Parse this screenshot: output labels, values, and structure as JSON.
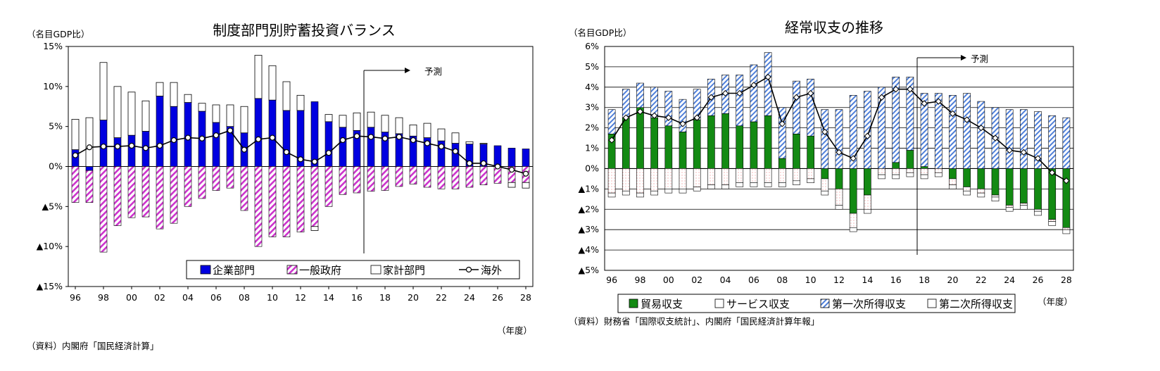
{
  "chart_data": [
    {
      "type": "bar",
      "title": "制度部門別貯蓄投資バランス",
      "ylabel": "（名目GDP比）",
      "xlabel": "（年度）",
      "source": "（資料）内閣府「国民経済計算」",
      "forecast_label": "予測",
      "forecast_from": 17,
      "ylim": [
        -15,
        15
      ],
      "yticks": [
        15,
        10,
        5,
        0,
        -5,
        -10,
        -15
      ],
      "ytick_labels": [
        "15%",
        "10%",
        "5%",
        "0%",
        "▲5%",
        "▲10%",
        "▲15%"
      ],
      "x": [
        96,
        97,
        98,
        99,
        0,
        1,
        2,
        3,
        4,
        5,
        6,
        7,
        8,
        9,
        10,
        11,
        12,
        13,
        14,
        15,
        16,
        17,
        18,
        19,
        20,
        21,
        22,
        23,
        24,
        25,
        26,
        27,
        28
      ],
      "xtick_labels": [
        "96",
        "98",
        "00",
        "02",
        "04",
        "06",
        "08",
        "10",
        "12",
        "14",
        "16",
        "18",
        "20",
        "22",
        "24",
        "26",
        "28"
      ],
      "legend_position": "bottom-right",
      "series": [
        {
          "name": "企業部門",
          "kind": "bar-stack-pos",
          "color": "#0000e0",
          "values": [
            2.1,
            -0.5,
            5.8,
            3.6,
            3.9,
            4.4,
            8.8,
            7.5,
            8.0,
            6.9,
            5.5,
            5.0,
            4.2,
            8.5,
            8.3,
            7.0,
            7.0,
            8.1,
            5.6,
            4.9,
            4.5,
            4.9,
            4.3,
            4.1,
            3.8,
            3.6,
            3.2,
            2.9,
            2.8,
            2.8,
            2.6,
            2.3,
            2.2
          ]
        },
        {
          "name": "家計部門",
          "kind": "bar-stack-pos",
          "color": "#ffffff",
          "values": [
            3.8,
            6.1,
            7.2,
            6.4,
            5.4,
            3.8,
            1.7,
            3.0,
            1.0,
            1.0,
            2.2,
            2.7,
            3.3,
            5.4,
            4.3,
            3.6,
            1.9,
            0.0,
            0.9,
            1.5,
            2.2,
            1.9,
            2.1,
            2.0,
            1.4,
            1.8,
            1.5,
            1.3,
            0.3,
            0.1,
            0.0,
            0.0,
            0.0
          ]
        },
        {
          "name": "一般政府",
          "kind": "bar-neg",
          "color": "#cc33cc",
          "values": [
            -4.5,
            -4.0,
            -10.7,
            -7.4,
            -6.4,
            -6.3,
            -7.8,
            -7.1,
            -5.0,
            -4.0,
            -3.0,
            -2.7,
            -5.5,
            -10.0,
            -8.8,
            -8.8,
            -8.2,
            -7.5,
            -5.0,
            -3.5,
            -3.3,
            -3.1,
            -3.0,
            -2.5,
            -2.2,
            -2.6,
            -2.8,
            -2.8,
            -2.6,
            -2.3,
            -2.1,
            -2.0,
            -2.0
          ]
        },
        {
          "name": "家計部門（負）",
          "kind": "bar-neg-stack",
          "color": "#ffffff",
          "values": [
            0,
            0,
            0,
            0,
            0,
            0,
            0,
            0,
            0,
            0,
            0,
            0,
            0,
            0,
            0,
            0,
            0,
            -0.5,
            0,
            0,
            0,
            0,
            0,
            0,
            0,
            0,
            0,
            0,
            0,
            0,
            0,
            -0.6,
            -0.7
          ]
        },
        {
          "name": "海外",
          "kind": "line",
          "color": "#000000",
          "values": [
            1.4,
            2.4,
            2.5,
            2.5,
            2.6,
            2.3,
            2.6,
            3.3,
            3.6,
            3.5,
            3.9,
            4.5,
            2.1,
            3.4,
            3.6,
            1.8,
            0.9,
            0.6,
            1.7,
            3.3,
            3.8,
            3.7,
            3.5,
            3.7,
            3.3,
            2.9,
            2.5,
            1.9,
            0.4,
            0.4,
            0.0,
            -0.4,
            -0.9
          ]
        }
      ]
    },
    {
      "type": "bar",
      "title": "経常収支の推移",
      "ylabel": "（名目GDP比）",
      "xlabel": "（年度）",
      "source": "（資料）財務省「国際収支統計」、内閣府「国民経済計算年報」",
      "forecast_label": "予測",
      "forecast_from": 18,
      "ylim": [
        -5,
        6
      ],
      "yticks": [
        6,
        5,
        4,
        3,
        2,
        1,
        0,
        -1,
        -2,
        -3,
        -4,
        -5
      ],
      "ytick_labels": [
        "6%",
        "5%",
        "4%",
        "3%",
        "2%",
        "1%",
        "0%",
        "▲1%",
        "▲2%",
        "▲3%",
        "▲4%",
        "▲5%"
      ],
      "x": [
        96,
        97,
        98,
        99,
        0,
        1,
        2,
        3,
        4,
        5,
        6,
        7,
        8,
        9,
        10,
        11,
        12,
        13,
        14,
        15,
        16,
        17,
        18,
        19,
        20,
        21,
        22,
        23,
        24,
        25,
        26,
        27,
        28
      ],
      "xtick_labels": [
        "96",
        "98",
        "00",
        "02",
        "04",
        "06",
        "08",
        "10",
        "12",
        "14",
        "16",
        "18",
        "20",
        "22",
        "24",
        "26",
        "28"
      ],
      "legend_position": "bottom",
      "series": [
        {
          "name": "貿易収支",
          "kind": "bar",
          "color": "#138a13",
          "values": [
            1.7,
            2.5,
            3.0,
            2.5,
            2.1,
            1.8,
            2.4,
            2.6,
            2.7,
            2.1,
            2.3,
            2.6,
            0.5,
            1.7,
            1.6,
            -0.5,
            -1.0,
            -2.2,
            -1.3,
            0.0,
            0.3,
            0.9,
            0.1,
            0.0,
            -0.5,
            -0.9,
            -1.0,
            -1.3,
            -1.8,
            -1.7,
            -2.0,
            -2.5,
            -2.9
          ]
        },
        {
          "name": "サービス収支",
          "kind": "bar",
          "color": "#ffffff",
          "values": [
            -1.2,
            -1.1,
            -1.2,
            -1.1,
            -1.0,
            -1.0,
            -0.9,
            -0.8,
            -0.8,
            -0.7,
            -0.7,
            -0.7,
            -0.7,
            -0.6,
            -0.5,
            -0.6,
            -0.8,
            -0.7,
            -0.7,
            -0.3,
            -0.3,
            -0.2,
            -0.3,
            -0.2,
            -0.3,
            -0.2,
            -0.2,
            -0.1,
            -0.1,
            -0.1,
            -0.1,
            -0.1,
            -0.1
          ]
        },
        {
          "name": "第一次所得収支",
          "kind": "bar",
          "color": "#4f7fd8",
          "values": [
            1.2,
            1.4,
            1.2,
            1.5,
            1.7,
            1.6,
            1.5,
            1.8,
            1.9,
            2.5,
            2.8,
            3.1,
            2.5,
            2.6,
            2.8,
            2.9,
            2.9,
            3.6,
            3.8,
            4.0,
            4.2,
            3.6,
            3.6,
            3.7,
            3.6,
            3.7,
            3.3,
            3.0,
            2.9,
            2.9,
            2.8,
            2.6,
            2.5
          ]
        },
        {
          "name": "第二次所得収支",
          "kind": "bar",
          "color": "#ffffff",
          "values": [
            -0.2,
            -0.2,
            -0.2,
            -0.2,
            -0.2,
            -0.2,
            -0.2,
            -0.2,
            -0.2,
            -0.2,
            -0.2,
            -0.2,
            -0.2,
            -0.2,
            -0.2,
            -0.2,
            -0.2,
            -0.2,
            -0.2,
            -0.2,
            -0.2,
            -0.2,
            -0.2,
            -0.2,
            -0.2,
            -0.2,
            -0.2,
            -0.2,
            -0.2,
            -0.2,
            -0.2,
            -0.2,
            -0.2
          ]
        },
        {
          "name": "経常収支",
          "kind": "line",
          "color": "#000000",
          "values": [
            1.4,
            2.5,
            2.8,
            2.6,
            2.5,
            2.2,
            2.5,
            3.5,
            3.7,
            3.7,
            4.1,
            4.5,
            2.2,
            3.5,
            3.7,
            1.8,
            0.8,
            0.5,
            1.6,
            3.5,
            3.9,
            3.9,
            3.2,
            3.3,
            2.7,
            2.4,
            2.0,
            1.5,
            0.9,
            0.8,
            0.5,
            -0.2,
            -0.6
          ]
        }
      ]
    }
  ]
}
